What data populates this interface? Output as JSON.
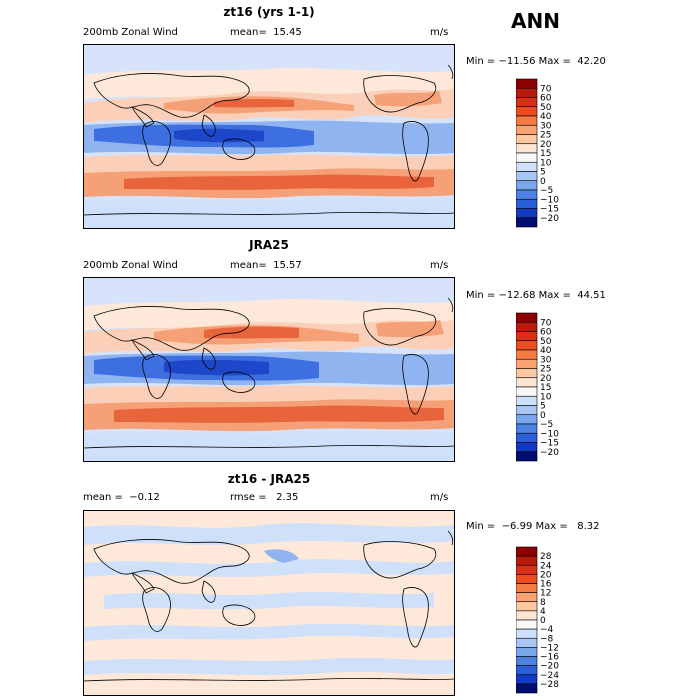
{
  "page_label": "ANN",
  "chart_data": [
    {
      "type": "heatmap",
      "title": "zt16 (yrs 1-1)",
      "left_label": "200mb Zonal Wind",
      "center_label": "mean=  15.45",
      "units": "m/s",
      "min_max": "Min = −11.56 Max =  42.20",
      "min": -11.56,
      "max": 42.2,
      "mean": 15.45,
      "colorbar": {
        "ticks": [
          "70",
          "60",
          "50",
          "40",
          "30",
          "25",
          "20",
          "15",
          "10",
          "5",
          "0",
          "−5",
          "−10",
          "−15",
          "−20"
        ],
        "colors": [
          "#8b0000",
          "#b51a0b",
          "#d73017",
          "#ec4e22",
          "#f57a43",
          "#fba272",
          "#fcc9a3",
          "#fde5d3",
          "#f8f8f8",
          "#cfe0fa",
          "#a7c6f3",
          "#7aa7ec",
          "#4b82e3",
          "#2a5fd9",
          "#1239c2",
          "#000d73"
        ]
      },
      "colors": {
        "strong_pos": "#e8643a",
        "pos": "#f6a078",
        "weak_pos": "#fcd0b8",
        "neutral": "#fde8da",
        "weak_neg": "#cfe0fa",
        "neg": "#8fb4f0",
        "strong_neg": "#3e6fe0",
        "deep_neg": "#1d47c8"
      }
    },
    {
      "type": "heatmap",
      "title": "JRA25",
      "left_label": "200mb Zonal Wind",
      "center_label": "mean=  15.57",
      "units": "m/s",
      "min_max": "Min = −12.68 Max =  44.51",
      "min": -12.68,
      "max": 44.51,
      "mean": 15.57,
      "colorbar": {
        "ticks": [
          "70",
          "60",
          "50",
          "40",
          "30",
          "25",
          "20",
          "15",
          "10",
          "5",
          "0",
          "−5",
          "−10",
          "−15",
          "−20"
        ],
        "colors": [
          "#8b0000",
          "#b51a0b",
          "#d73017",
          "#ec4e22",
          "#f57a43",
          "#fba272",
          "#fcc9a3",
          "#fde5d3",
          "#f8f8f8",
          "#cfe0fa",
          "#a7c6f3",
          "#7aa7ec",
          "#4b82e3",
          "#2a5fd9",
          "#1239c2",
          "#000d73"
        ]
      }
    },
    {
      "type": "heatmap",
      "title": "zt16 - JRA25",
      "left_label": "mean =  −0.12",
      "center_label": "rmse =   2.35",
      "units": "m/s",
      "min_max": "Min =  −6.99 Max =   8.32",
      "min": -6.99,
      "max": 8.32,
      "mean": -0.12,
      "rmse": 2.35,
      "colorbar": {
        "ticks": [
          "28",
          "24",
          "20",
          "16",
          "12",
          "8",
          "4",
          "0",
          "−4",
          "−8",
          "−12",
          "−16",
          "−20",
          "−24",
          "−28"
        ],
        "colors": [
          "#8b0000",
          "#b51a0b",
          "#d73017",
          "#ec4e22",
          "#f57a43",
          "#fba272",
          "#fcc9a3",
          "#fde5d3",
          "#f8f8f8",
          "#cfe0fa",
          "#a7c6f3",
          "#7aa7ec",
          "#4b82e3",
          "#2a5fd9",
          "#1239c2",
          "#000d73"
        ]
      }
    }
  ]
}
